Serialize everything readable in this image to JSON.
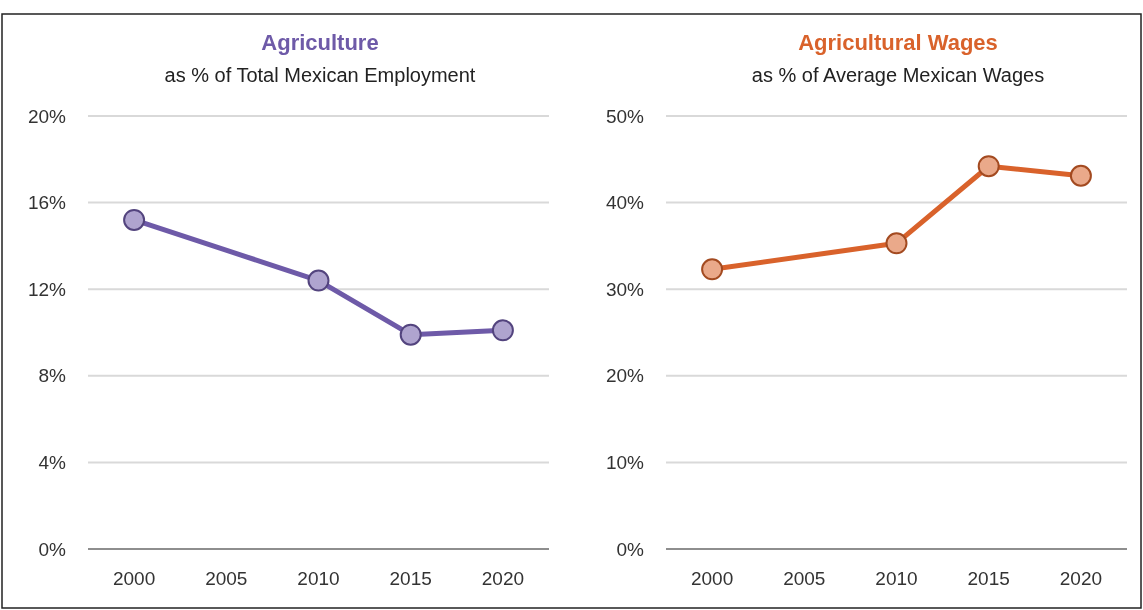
{
  "chart_data": [
    {
      "type": "line",
      "title": "Agriculture",
      "subtitle": "as % of Total Mexican Employment",
      "x": [
        2000,
        2010,
        2015,
        2020
      ],
      "series": [
        {
          "color": "#6e5aa8",
          "values": [
            15.2,
            12.4,
            9.9,
            10.1
          ]
        }
      ],
      "xlim": [
        1997.5,
        2022.5
      ],
      "xticks": [
        2000,
        2005,
        2010,
        2015,
        2020
      ],
      "ylim": [
        0,
        20
      ],
      "yticks": [
        {
          "value": 0,
          "label": "0%"
        },
        {
          "value": 4,
          "label": "4%"
        },
        {
          "value": 8,
          "label": "8%"
        },
        {
          "value": 12,
          "label": "12%"
        },
        {
          "value": 16,
          "label": "16%"
        },
        {
          "value": 20,
          "label": "20%"
        }
      ],
      "grid": "y",
      "marker": "circle",
      "line_style": "solid"
    },
    {
      "type": "line",
      "title": "Agricultural Wages",
      "subtitle": "as % of Average Mexican Wages",
      "x": [
        2000,
        2010,
        2015,
        2020
      ],
      "series": [
        {
          "color": "#d9622b",
          "values": [
            32.3,
            35.3,
            44.2,
            43.1
          ]
        }
      ],
      "xlim": [
        1997.5,
        2022.5
      ],
      "xticks": [
        2000,
        2005,
        2010,
        2015,
        2020
      ],
      "ylim": [
        0,
        50
      ],
      "yticks": [
        {
          "value": 0,
          "label": "0%"
        },
        {
          "value": 10,
          "label": "10%"
        },
        {
          "value": 20,
          "label": "20%"
        },
        {
          "value": 30,
          "label": "30%"
        },
        {
          "value": 40,
          "label": "40%"
        },
        {
          "value": 50,
          "label": "50%"
        }
      ],
      "grid": "y",
      "marker": "circle",
      "line_style": "solid"
    }
  ]
}
